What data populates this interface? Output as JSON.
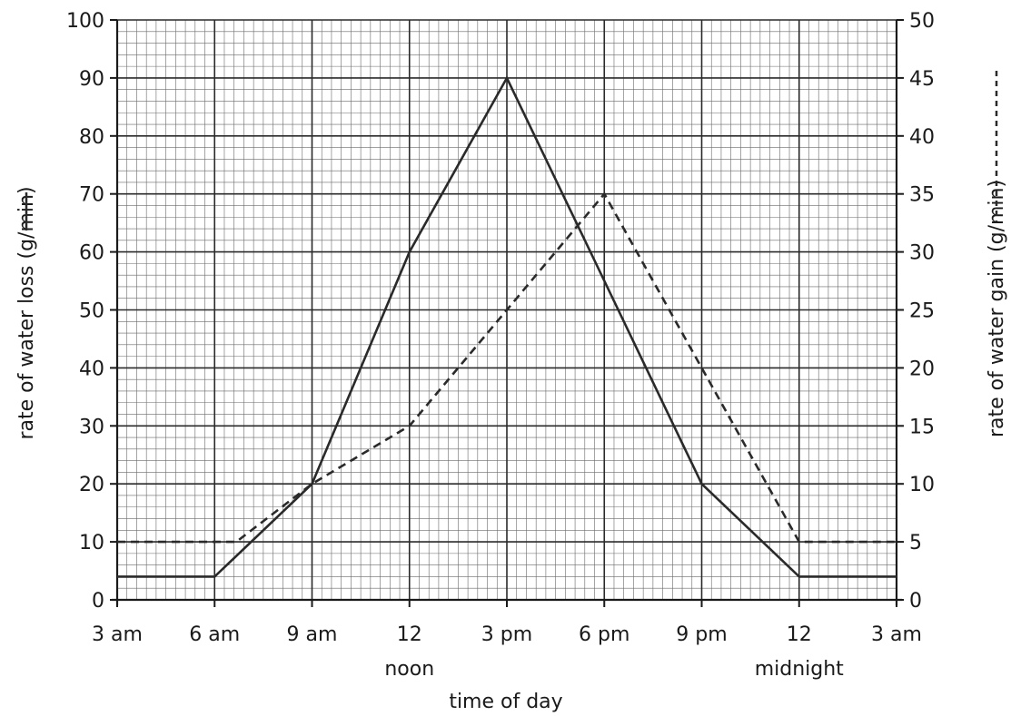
{
  "chart_data": {
    "type": "line",
    "xlabel": "time of day",
    "ylabel_left": "rate of water loss (g/min)",
    "ylabel_right": "rate of water gain (g/min)",
    "x_ticks": [
      "3 am",
      "6 am",
      "9 am",
      "12",
      "3 pm",
      "6 pm",
      "9 pm",
      "12",
      "3 am"
    ],
    "x_sublabels": [
      "",
      "",
      "",
      "noon",
      "",
      "",
      "",
      "midnight",
      ""
    ],
    "x_range_hours": [
      3,
      27
    ],
    "ylim_left": [
      0,
      100
    ],
    "ylim_right": [
      0,
      50
    ],
    "y_ticks_left": [
      "0",
      "10",
      "20",
      "30",
      "40",
      "50",
      "60",
      "70",
      "80",
      "90",
      "100"
    ],
    "y_ticks_right": [
      "0",
      "5",
      "10",
      "15",
      "20",
      "25",
      "30",
      "35",
      "40",
      "45",
      "50"
    ],
    "grid": true,
    "series": [
      {
        "axis": "left",
        "style": "solid",
        "legend_mark": "solid-line",
        "x": [
          "3 am",
          "6 am",
          "9 am",
          "12 noon",
          "3 pm",
          "6 pm",
          "9 pm",
          "12 midnight",
          "3 am"
        ],
        "values": [
          4,
          4,
          20,
          60,
          90,
          55,
          20,
          4,
          4
        ]
      },
      {
        "axis": "right",
        "style": "dashed",
        "legend_mark": "dashed-line",
        "x": [
          "3 am",
          "6:40 am",
          "9 am",
          "12 noon",
          "3 pm",
          "6 pm",
          "9 pm",
          "12 midnight",
          "3 am"
        ],
        "values": [
          5,
          5,
          10,
          15,
          25,
          35,
          20,
          5,
          5
        ]
      }
    ]
  }
}
